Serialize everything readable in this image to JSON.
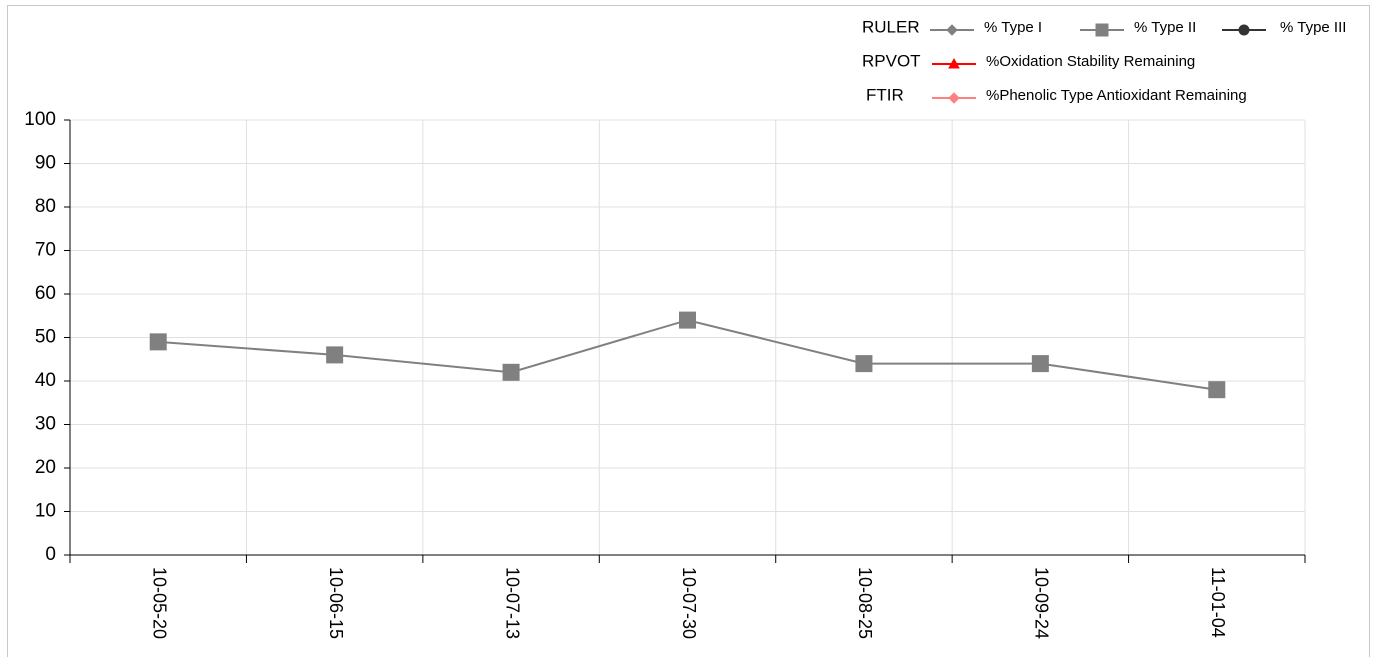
{
  "chart_data": {
    "type": "line",
    "categories": [
      "10-05-20",
      "10-06-15",
      "10-07-13",
      "10-07-30",
      "10-08-25",
      "10-09-24",
      "11-01-04"
    ],
    "ylim": [
      0,
      100
    ],
    "yticks": [
      0,
      10,
      20,
      30,
      40,
      50,
      60,
      70,
      80,
      90,
      100
    ],
    "grid": true,
    "legend": "top-right",
    "series_groups": [
      {
        "name": "RULER",
        "series": [
          {
            "name": "% Type I",
            "color": "#808080",
            "marker": "diamond",
            "values": [
              null,
              null,
              null,
              null,
              null,
              null,
              null
            ]
          },
          {
            "name": "% Type II",
            "color": "#808080",
            "marker": "square",
            "values": [
              49,
              46,
              42,
              54,
              44,
              44,
              38
            ]
          },
          {
            "name": "% Type III",
            "color": "#333333",
            "marker": "circle",
            "values": [
              null,
              null,
              null,
              null,
              null,
              null,
              null
            ]
          }
        ]
      },
      {
        "name": "RPVOT",
        "series": [
          {
            "name": "%Oxidation Stability Remaining",
            "color": "#ff0000",
            "marker": "triangle",
            "values": [
              null,
              null,
              null,
              null,
              null,
              null,
              null
            ]
          }
        ]
      },
      {
        "name": "FTIR",
        "series": [
          {
            "name": "%Phenolic Type Antioxidant Remaining",
            "color": "#ff8080",
            "marker": "diamond",
            "values": [
              null,
              null,
              null,
              null,
              null,
              null,
              null
            ]
          }
        ]
      }
    ]
  }
}
